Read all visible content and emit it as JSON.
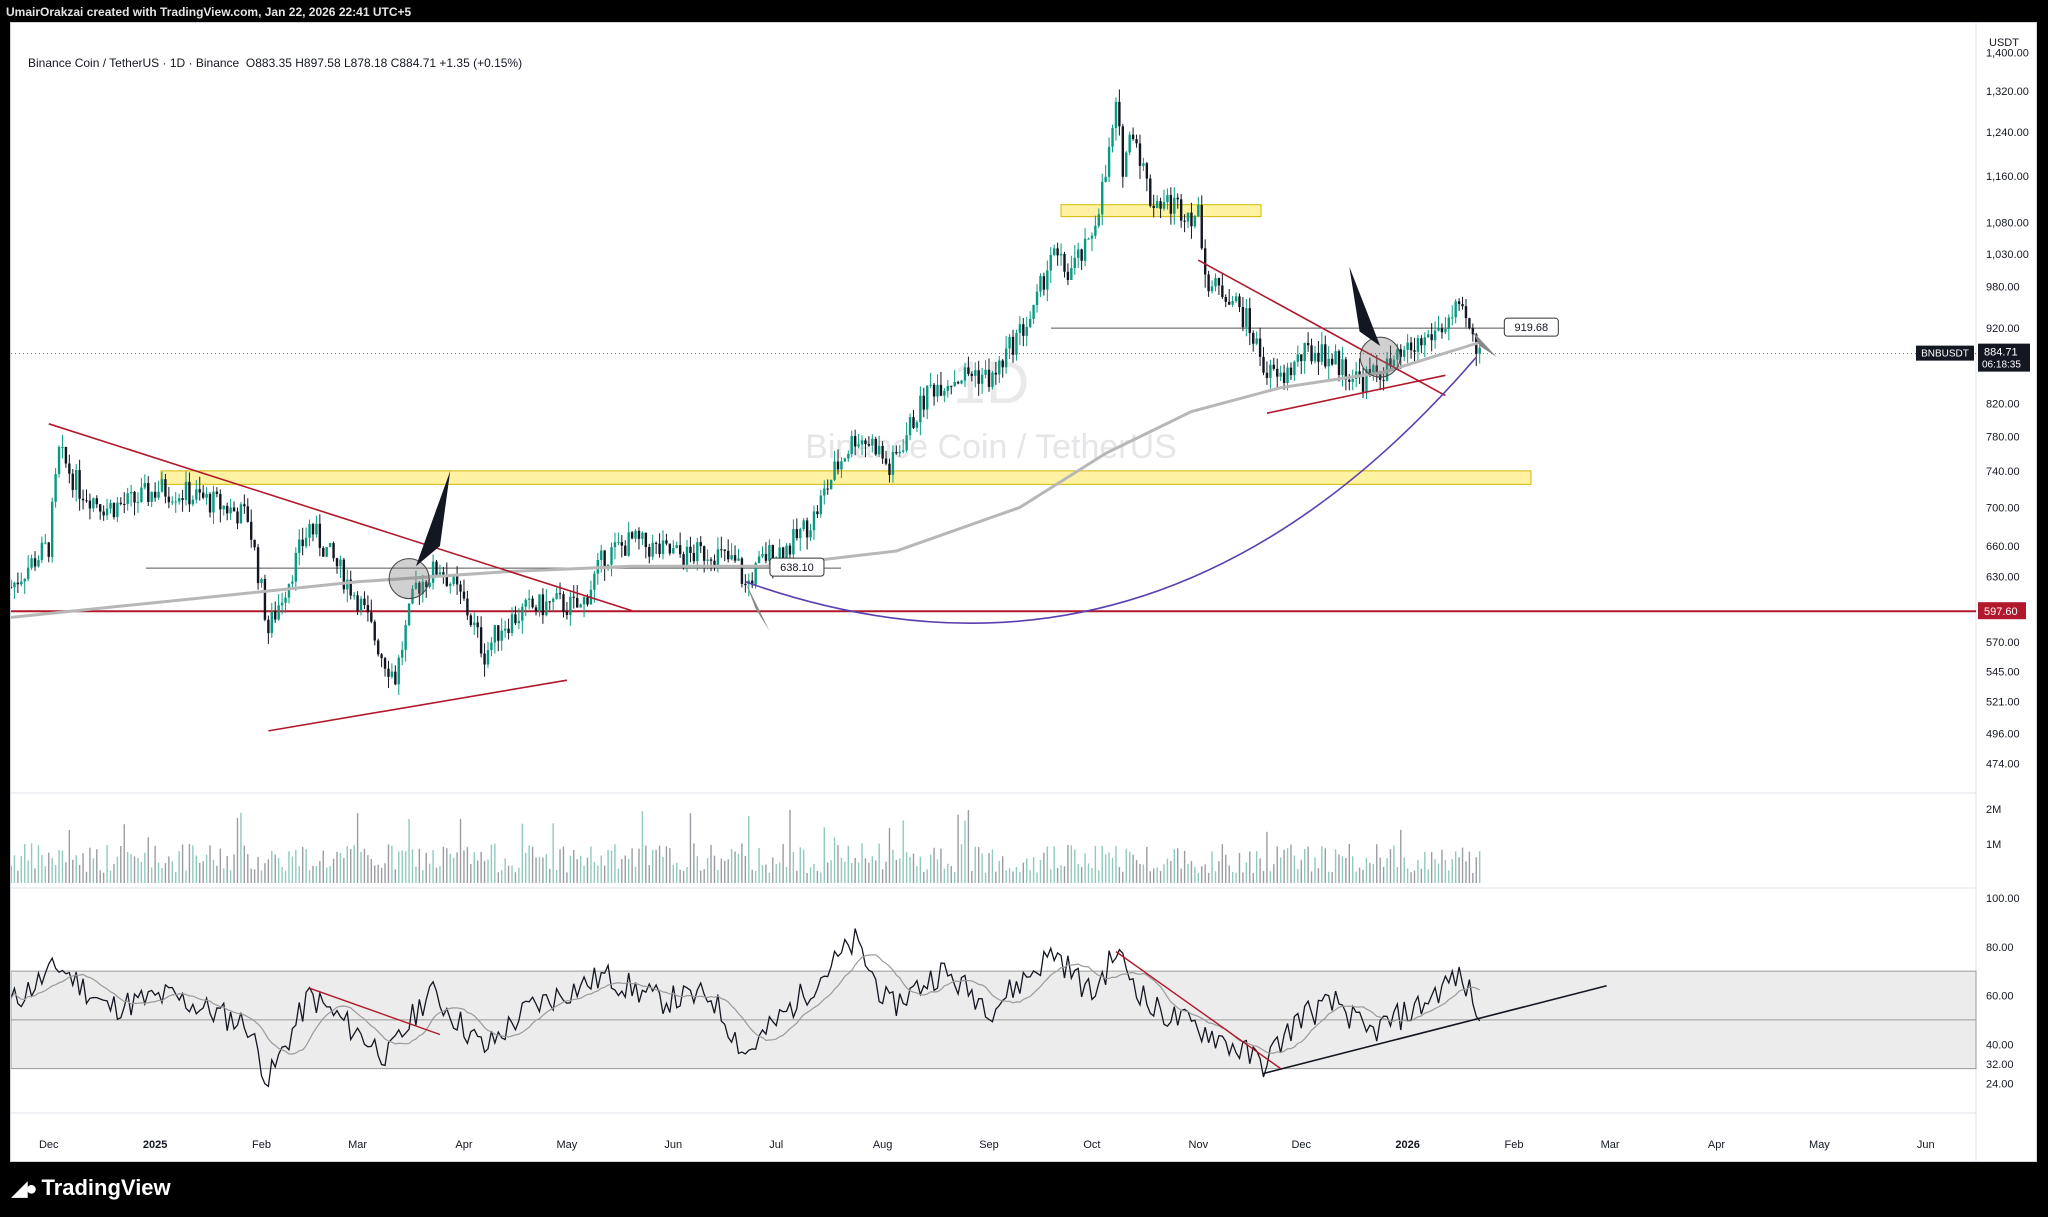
{
  "header": {
    "creator_line": "UmairOrakzai created with TradingView.com, Jan 22, 2026 22:41 UTC+5"
  },
  "symbol": {
    "title": "Binance Coin / TetherUS · 1D · Binance",
    "ohlc": "O883.35  H897.58  L878.18  C884.71  +1.35 (+0.15%)",
    "watermark_interval": "1D",
    "watermark_name": "Binance Coin / TetherUS",
    "ticker_tag": "BNBUSDT",
    "last_price": "884.71",
    "countdown": "06:18:35"
  },
  "price_axis": {
    "unit": "USDT",
    "ticks": [
      "1,400.00",
      "1,320.00",
      "1,240.00",
      "1,160.00",
      "1,080.00",
      "1,030.00",
      "980.00",
      "920.00",
      "820.00",
      "780.00",
      "740.00",
      "700.00",
      "660.00",
      "630.00",
      "570.00",
      "545.00",
      "521.00",
      "496.00",
      "474.00"
    ],
    "level_label": "597.60"
  },
  "volume_axis": {
    "ticks": [
      "2M",
      "1M"
    ]
  },
  "rsi_axis": {
    "ticks": [
      "100.00",
      "80.00",
      "60.00",
      "40.00",
      "32.00",
      "24.00"
    ]
  },
  "time_axis": {
    "labels": [
      "Dec",
      "2025",
      "Feb",
      "Mar",
      "Apr",
      "May",
      "Jun",
      "Jul",
      "Aug",
      "Sep",
      "Oct",
      "Nov",
      "Dec",
      "2026",
      "Feb",
      "Mar",
      "Apr",
      "May",
      "Jun"
    ]
  },
  "annotations": {
    "label_919": "919.68",
    "label_638": "638.10"
  },
  "footer": {
    "brand": "TradingView"
  },
  "colors": {
    "up": "#089981",
    "down": "#131722",
    "red_line": "#b2182b",
    "ma": "#b7b7b7",
    "yellow_zone": "#fff3a3",
    "purple_curve": "#5b3fb0",
    "rsi_band": "#ececec"
  },
  "chart_data": {
    "type": "candlestick",
    "title": "Binance Coin / TetherUS · 1D · Binance",
    "xlabel": "",
    "ylabel": "USDT",
    "x_range": [
      "2024-11-20",
      "2026-06-20"
    ],
    "ylim": [
      460,
      1420
    ],
    "scale": "log",
    "close_path": [
      {
        "date": "2024-11-20",
        "close": 620
      },
      {
        "date": "2024-11-25",
        "close": 640
      },
      {
        "date": "2024-12-01",
        "close": 660
      },
      {
        "date": "2024-12-04",
        "close": 760
      },
      {
        "date": "2024-12-10",
        "close": 720
      },
      {
        "date": "2024-12-18",
        "close": 700
      },
      {
        "date": "2024-12-25",
        "close": 705
      },
      {
        "date": "2025-01-02",
        "close": 720
      },
      {
        "date": "2025-01-10",
        "close": 715
      },
      {
        "date": "2025-01-18",
        "close": 705
      },
      {
        "date": "2025-01-28",
        "close": 690
      },
      {
        "date": "2025-02-03",
        "close": 580
      },
      {
        "date": "2025-02-08",
        "close": 620
      },
      {
        "date": "2025-02-15",
        "close": 680
      },
      {
        "date": "2025-02-22",
        "close": 645
      },
      {
        "date": "2025-03-01",
        "close": 610
      },
      {
        "date": "2025-03-08",
        "close": 560
      },
      {
        "date": "2025-03-12",
        "close": 540
      },
      {
        "date": "2025-03-18",
        "close": 620
      },
      {
        "date": "2025-03-25",
        "close": 640
      },
      {
        "date": "2025-04-01",
        "close": 605
      },
      {
        "date": "2025-04-07",
        "close": 560
      },
      {
        "date": "2025-04-12",
        "close": 585
      },
      {
        "date": "2025-04-20",
        "close": 600
      },
      {
        "date": "2025-04-28",
        "close": 605
      },
      {
        "date": "2025-05-05",
        "close": 600
      },
      {
        "date": "2025-05-12",
        "close": 650
      },
      {
        "date": "2025-05-20",
        "close": 665
      },
      {
        "date": "2025-05-28",
        "close": 655
      },
      {
        "date": "2025-06-05",
        "close": 650
      },
      {
        "date": "2025-06-12",
        "close": 655
      },
      {
        "date": "2025-06-20",
        "close": 640
      },
      {
        "date": "2025-06-22",
        "close": 620
      },
      {
        "date": "2025-06-28",
        "close": 650
      },
      {
        "date": "2025-07-05",
        "close": 660
      },
      {
        "date": "2025-07-12",
        "close": 690
      },
      {
        "date": "2025-07-18",
        "close": 740
      },
      {
        "date": "2025-07-24",
        "close": 780
      },
      {
        "date": "2025-07-30",
        "close": 770
      },
      {
        "date": "2025-08-03",
        "close": 740
      },
      {
        "date": "2025-08-10",
        "close": 800
      },
      {
        "date": "2025-08-15",
        "close": 840
      },
      {
        "date": "2025-08-20",
        "close": 850
      },
      {
        "date": "2025-08-28",
        "close": 860
      },
      {
        "date": "2025-09-02",
        "close": 850
      },
      {
        "date": "2025-09-08",
        "close": 900
      },
      {
        "date": "2025-09-14",
        "close": 940
      },
      {
        "date": "2025-09-19",
        "close": 1030
      },
      {
        "date": "2025-09-24",
        "close": 1000
      },
      {
        "date": "2025-09-30",
        "close": 1040
      },
      {
        "date": "2025-10-05",
        "close": 1160
      },
      {
        "date": "2025-10-08",
        "close": 1280
      },
      {
        "date": "2025-10-10",
        "close": 1180
      },
      {
        "date": "2025-10-13",
        "close": 1250
      },
      {
        "date": "2025-10-18",
        "close": 1120
      },
      {
        "date": "2025-10-25",
        "close": 1110
      },
      {
        "date": "2025-11-01",
        "close": 1090
      },
      {
        "date": "2025-11-04",
        "close": 980
      },
      {
        "date": "2025-11-10",
        "close": 970
      },
      {
        "date": "2025-11-15",
        "close": 930
      },
      {
        "date": "2025-11-21",
        "close": 860
      },
      {
        "date": "2025-11-25",
        "close": 850
      },
      {
        "date": "2025-12-01",
        "close": 880
      },
      {
        "date": "2025-12-06",
        "close": 890
      },
      {
        "date": "2025-12-12",
        "close": 870
      },
      {
        "date": "2025-12-18",
        "close": 850
      },
      {
        "date": "2025-12-22",
        "close": 855
      },
      {
        "date": "2025-12-28",
        "close": 870
      },
      {
        "date": "2026-01-05",
        "close": 900
      },
      {
        "date": "2026-01-12",
        "close": 925
      },
      {
        "date": "2026-01-15",
        "close": 940
      },
      {
        "date": "2026-01-18",
        "close": 930
      },
      {
        "date": "2026-01-20",
        "close": 900
      },
      {
        "date": "2026-01-22",
        "close": 884.71
      }
    ],
    "horizontal_levels": [
      597.6,
      919.68,
      638.1
    ],
    "zones": [
      {
        "from": 725,
        "to": 740
      },
      {
        "from": 1090,
        "to": 1110
      }
    ],
    "volume": {
      "axis": "2M / 1M"
    },
    "rsi": {
      "band": [
        30,
        70
      ],
      "ylim": [
        20,
        100
      ],
      "path": [
        {
          "date": "2024-11-20",
          "v": 57
        },
        {
          "date": "2024-12-04",
          "v": 72
        },
        {
          "date": "2024-12-18",
          "v": 55
        },
        {
          "date": "2025-01-05",
          "v": 60
        },
        {
          "date": "2025-01-28",
          "v": 48
        },
        {
          "date": "2025-02-03",
          "v": 25
        },
        {
          "date": "2025-02-15",
          "v": 60
        },
        {
          "date": "2025-03-10",
          "v": 35
        },
        {
          "date": "2025-03-22",
          "v": 62
        },
        {
          "date": "2025-04-07",
          "v": 38
        },
        {
          "date": "2025-04-20",
          "v": 55
        },
        {
          "date": "2025-05-12",
          "v": 68
        },
        {
          "date": "2025-05-28",
          "v": 58
        },
        {
          "date": "2025-06-12",
          "v": 60
        },
        {
          "date": "2025-06-22",
          "v": 36
        },
        {
          "date": "2025-07-10",
          "v": 62
        },
        {
          "date": "2025-07-24",
          "v": 82
        },
        {
          "date": "2025-08-03",
          "v": 55
        },
        {
          "date": "2025-08-18",
          "v": 70
        },
        {
          "date": "2025-09-02",
          "v": 55
        },
        {
          "date": "2025-09-20",
          "v": 78
        },
        {
          "date": "2025-10-01",
          "v": 60
        },
        {
          "date": "2025-10-08",
          "v": 78
        },
        {
          "date": "2025-10-18",
          "v": 55
        },
        {
          "date": "2025-11-04",
          "v": 45
        },
        {
          "date": "2025-11-20",
          "v": 32
        },
        {
          "date": "2025-12-01",
          "v": 52
        },
        {
          "date": "2025-12-12",
          "v": 57
        },
        {
          "date": "2025-12-20",
          "v": 44
        },
        {
          "date": "2026-01-05",
          "v": 56
        },
        {
          "date": "2026-01-15",
          "v": 68
        },
        {
          "date": "2026-01-20",
          "v": 60
        },
        {
          "date": "2026-01-22",
          "v": 46
        }
      ]
    }
  }
}
